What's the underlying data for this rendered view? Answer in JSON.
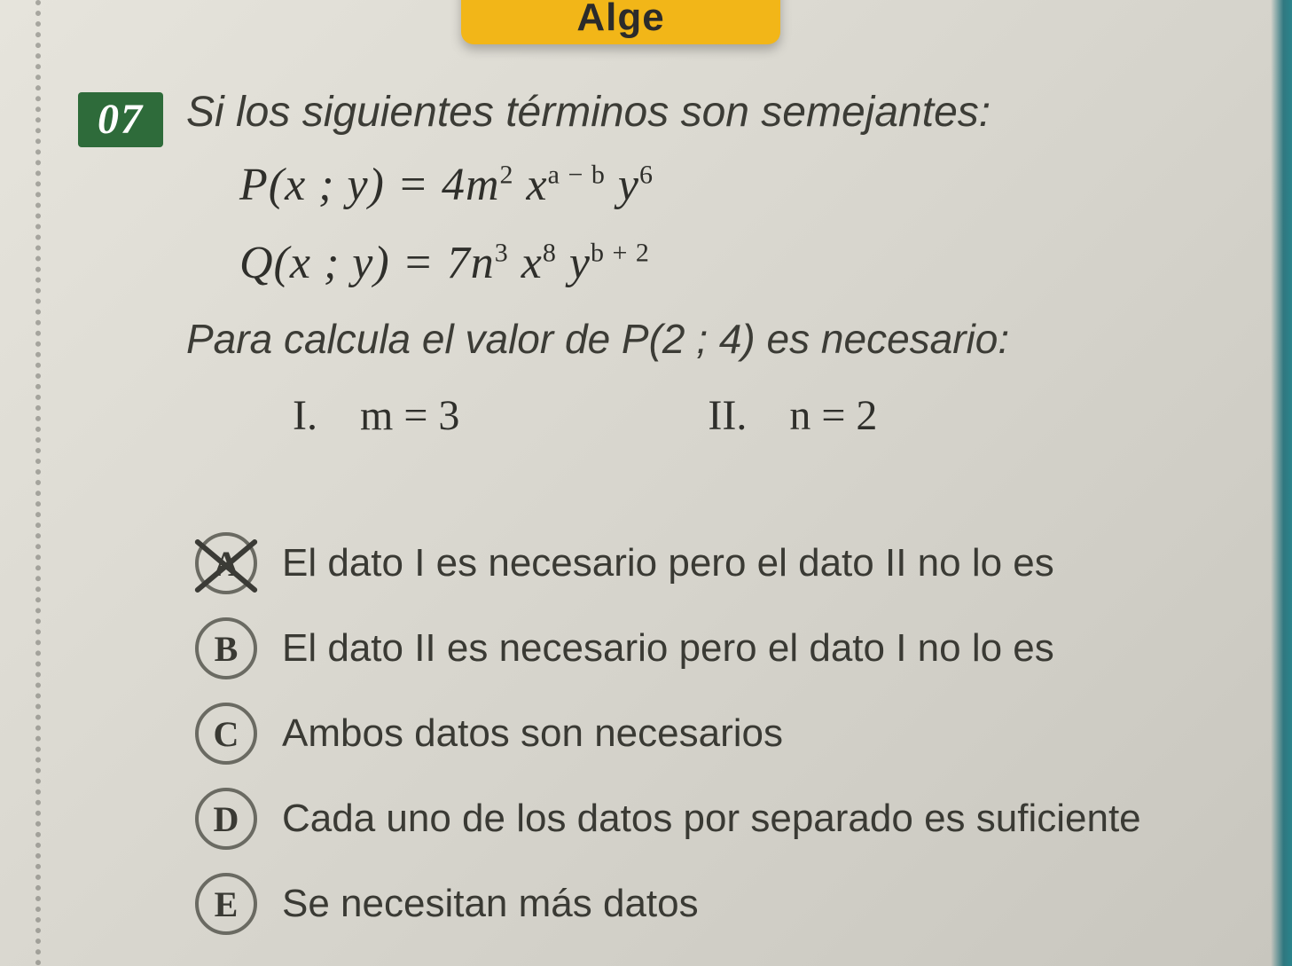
{
  "header_tab": "Alge",
  "question_number": "07",
  "stem": "Si los siguientes términos son semejantes:",
  "formula_P_lhs": "P(x ; y) = ",
  "formula_P_coef": "4m",
  "formula_P_m_sup": "2",
  "formula_P_x": " x",
  "formula_P_x_sup": "a − b",
  "formula_P_y": " y",
  "formula_P_y_sup": "6",
  "formula_Q_lhs": "Q(x ; y) = ",
  "formula_Q_coef": "7n",
  "formula_Q_n_sup": "3",
  "formula_Q_x": " x",
  "formula_Q_x_sup": "8",
  "formula_Q_y": " y",
  "formula_Q_y_sup": "b + 2",
  "sub_stem": "Para calcula el valor de P(2 ; 4) es necesario:",
  "roman_I_label": "I.",
  "roman_I_eq": "m = 3",
  "roman_II_label": "II.",
  "roman_II_eq": "n = 2",
  "options": {
    "A": {
      "letter": "A",
      "text": "El dato I es necesario pero el dato II no lo es",
      "crossed": true
    },
    "B": {
      "letter": "B",
      "text": "El dato II es necesario pero el dato I no lo es",
      "crossed": false
    },
    "C": {
      "letter": "C",
      "text": "Ambos datos son necesarios",
      "crossed": false
    },
    "D": {
      "letter": "D",
      "text": "Cada uno de los datos por separado es suficiente",
      "crossed": false
    },
    "E": {
      "letter": "E",
      "text": "Se necesitan más datos",
      "crossed": false
    }
  },
  "colors": {
    "badge_bg": "#2e6b3a",
    "tab_bg": "#f2b618",
    "page_bg": "#d8d6ce",
    "text": "#3a3a36",
    "circle_border": "#6a6a62"
  }
}
